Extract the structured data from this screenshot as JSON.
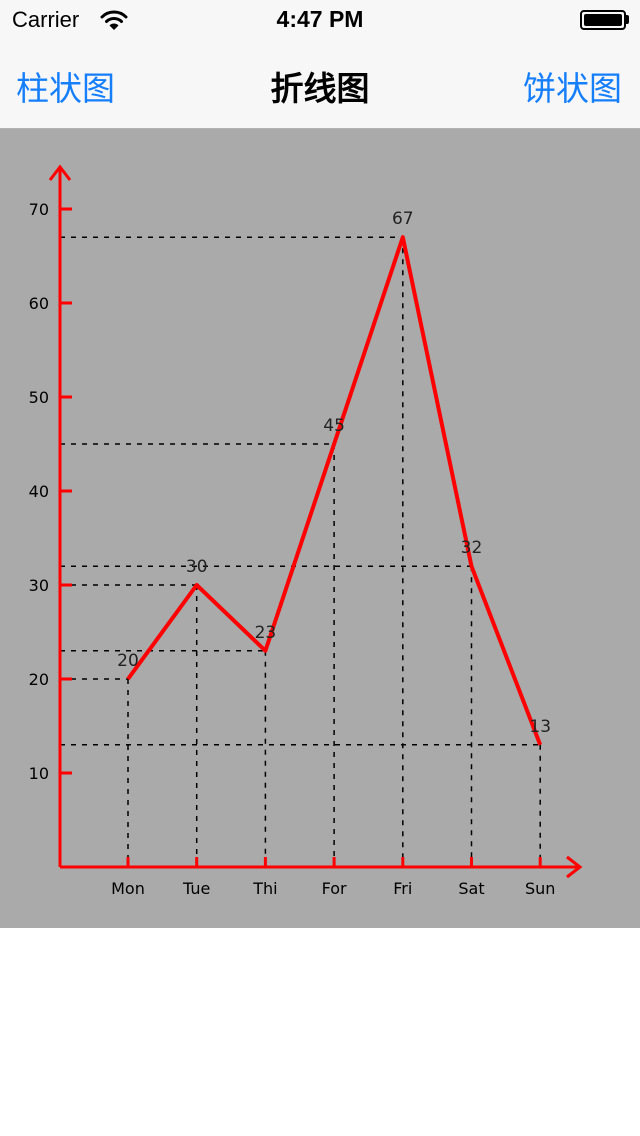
{
  "status_bar": {
    "carrier": "Carrier",
    "time": "4:47 PM"
  },
  "nav": {
    "left_label": "柱状图",
    "title": "折线图",
    "right_label": "饼状图"
  },
  "colors": {
    "line": "#ff0000",
    "axis": "#ff0000",
    "background": "#aaaaaa",
    "accent": "#147efb"
  },
  "chart_data": {
    "type": "line",
    "title": "",
    "xlabel": "",
    "ylabel": "",
    "categories": [
      "Mon",
      "Tue",
      "Thi",
      "For",
      "Fri",
      "Sat",
      "Sun"
    ],
    "series": [
      {
        "values": [
          20,
          30,
          23,
          45,
          67,
          32,
          13
        ]
      }
    ],
    "yticks": [
      10,
      20,
      30,
      40,
      50,
      60,
      70
    ],
    "ylim": [
      0,
      70
    ],
    "data_labels": true,
    "guide_lines": "dashed"
  }
}
